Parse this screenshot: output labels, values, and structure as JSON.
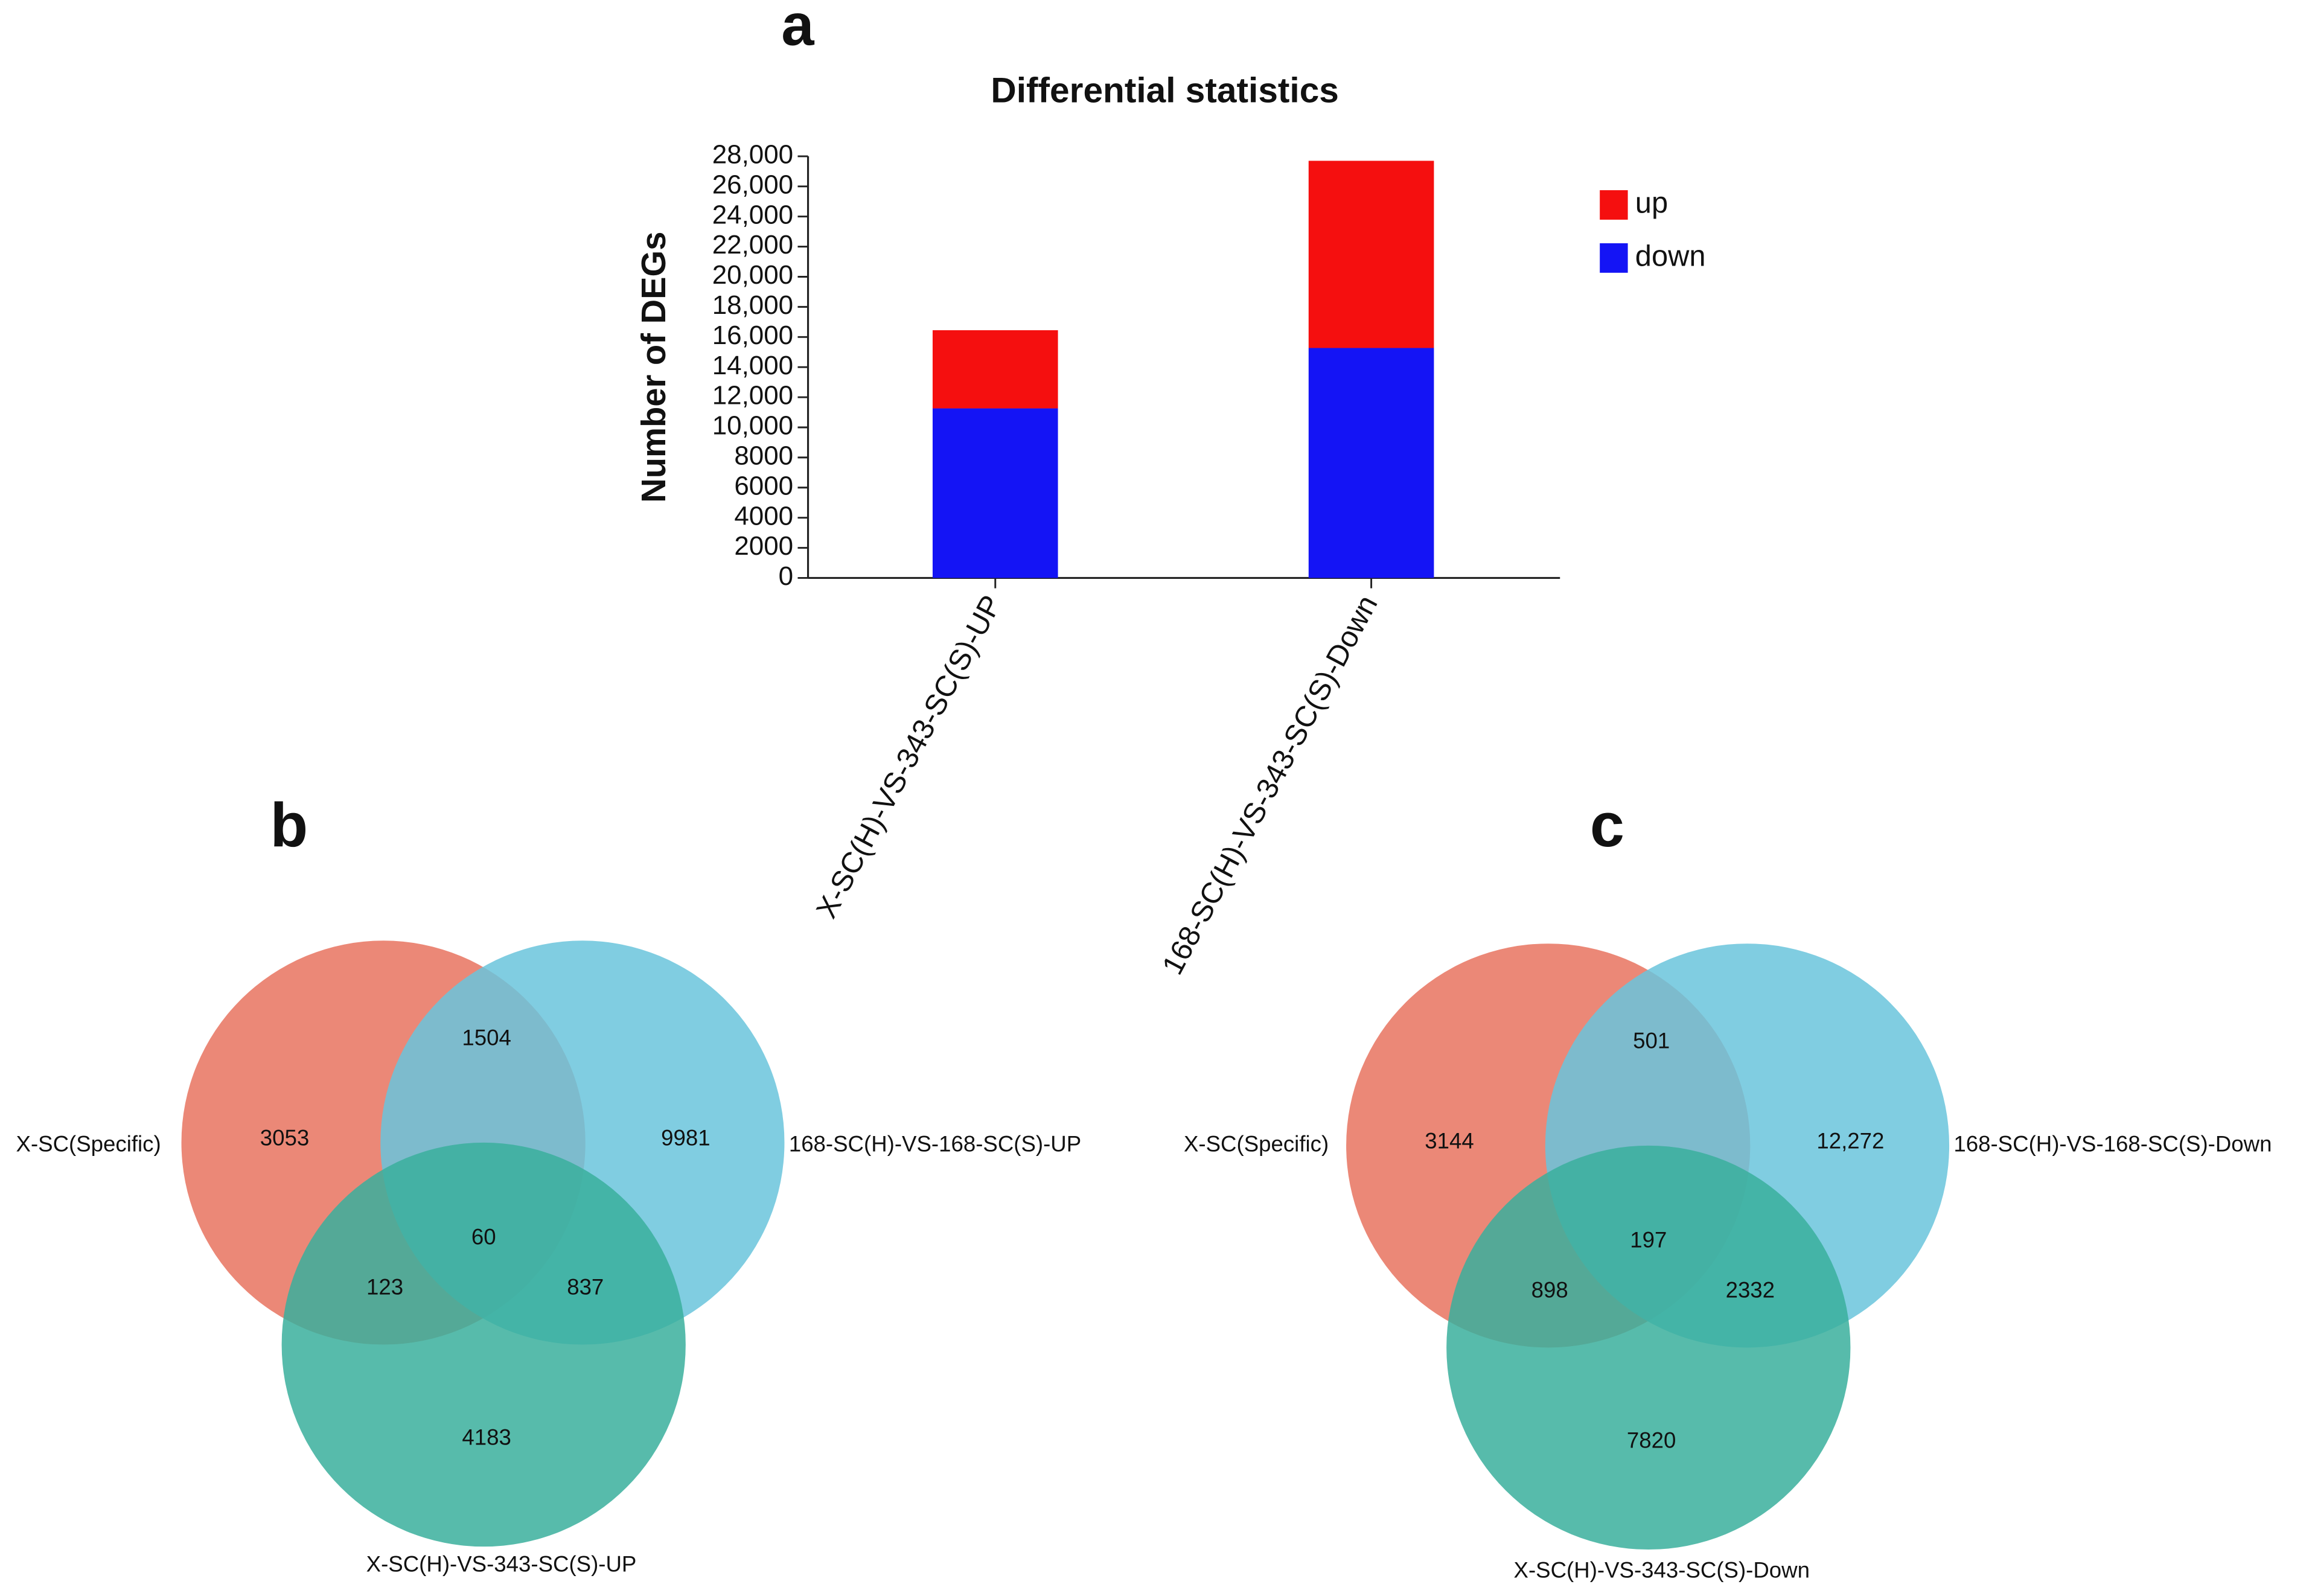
{
  "chart_data": [
    {
      "type": "bar",
      "stacked": true,
      "panel": "a",
      "title": "Differential statistics",
      "y_label": "Number of DEGs",
      "categories": [
        "X-SC(H)-VS-343-SC(S)-UP",
        "168-SC(H)-VS-343-SC(S)-Down"
      ],
      "series": [
        {
          "name": "down",
          "color": "#1414f5",
          "values": [
            11260,
            15270
          ]
        },
        {
          "name": "up",
          "color": "#f50f0f",
          "values": [
            5190,
            12430
          ]
        }
      ],
      "ylim": [
        0,
        28000
      ],
      "yticks": [
        0,
        2000,
        4000,
        6000,
        8000,
        {
          "value": 10000,
          "label": "10,000"
        },
        {
          "value": 12000,
          "label": "12,000"
        },
        {
          "value": 14000,
          "label": "14,000"
        },
        {
          "value": 16000,
          "label": "16,000"
        },
        {
          "value": 18000,
          "label": "18,000"
        },
        {
          "value": 20000,
          "label": "20,000"
        },
        {
          "value": 22000,
          "label": "22,000"
        },
        {
          "value": 24000,
          "label": "24,000"
        },
        {
          "value": 26000,
          "label": "26,000"
        },
        {
          "value": 28000,
          "label": "28,000"
        }
      ],
      "legend": "right"
    },
    {
      "type": "venn",
      "panel": "b",
      "sets": [
        "X-SC(Specific)",
        "168-SC(H)-VS-168-SC(S)-UP",
        "X-SC(H)-VS-343-SC(S)-UP"
      ],
      "colors": [
        "#e8735f",
        "#6ac4dc",
        "#3aaf9c"
      ],
      "regions": [
        3053,
        1504,
        9981,
        60,
        123,
        837,
        4183
      ]
    },
    {
      "type": "venn",
      "panel": "c",
      "sets": [
        "X-SC(Specific)",
        "168-SC(H)-VS-168-SC(S)-Down",
        "X-SC(H)-VS-343-SC(S)-Down"
      ],
      "colors": [
        "#e8735f",
        "#6ac4dc",
        "#3aaf9c"
      ],
      "regions": [
        3144,
        501,
        12272,
        197,
        898,
        2332,
        7820
      ],
      "value_labels": [
        "3144",
        "501",
        "12,272",
        "197",
        "898",
        "2332",
        "7820"
      ]
    }
  ]
}
